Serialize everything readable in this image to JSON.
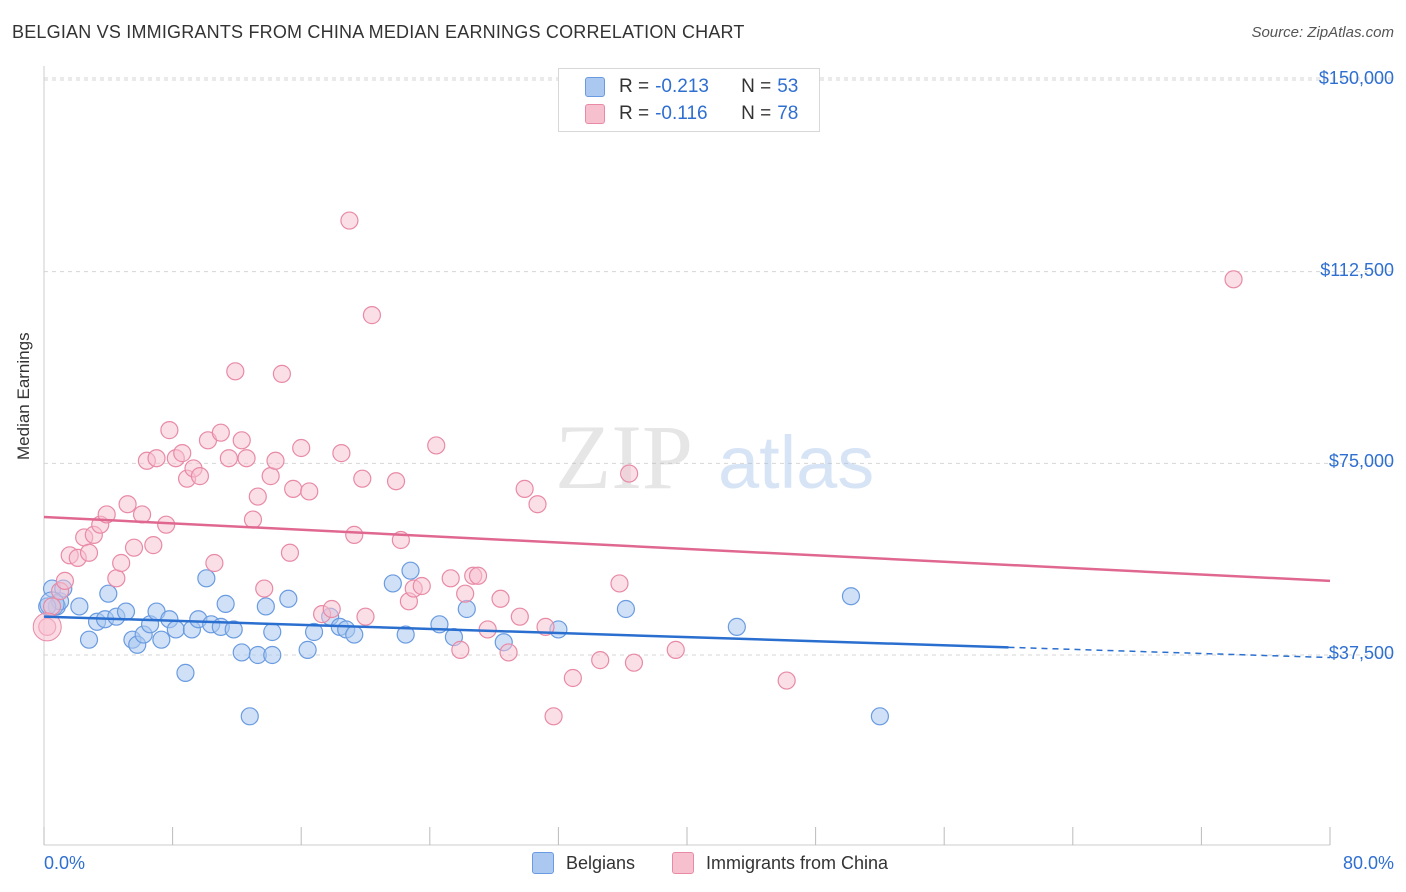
{
  "header": {
    "title": "BELGIAN VS IMMIGRANTS FROM CHINA MEDIAN EARNINGS CORRELATION CHART",
    "source": "Source: ZipAtlas.com"
  },
  "legend": {
    "belgians": {
      "r_label": "R = ",
      "r_value": "-0.213",
      "n_label": "N = ",
      "n_value": "53"
    },
    "china": {
      "r_label": "R = ",
      "r_value": "-0.116",
      "n_label": "N = ",
      "n_value": "78"
    }
  },
  "bottom_legend": {
    "belgians": "Belgians",
    "china": "Immigrants from China"
  },
  "watermark": {
    "zip": "ZIP",
    "atlas": "atlas"
  },
  "colors": {
    "belgians_fill": "#aac8f0",
    "belgians_stroke": "#6a9be0",
    "belgians_line": "#2a6fcf",
    "china_fill": "#f7c0cf",
    "china_stroke": "#e88aa6",
    "china_line": "#e06890",
    "axis_text": "#2f6fd1",
    "grid": "#d6d6d6"
  },
  "chart_data": {
    "type": "scatter",
    "title": "BELGIAN VS IMMIGRANTS FROM CHINA MEDIAN EARNINGS CORRELATION CHART",
    "xlabel": "",
    "ylabel": "Median Earnings",
    "xlim": [
      0,
      80
    ],
    "ylim": [
      0,
      155000
    ],
    "x_tick_labels": [
      "0.0%",
      "80.0%"
    ],
    "y_ticks": [
      37500,
      75000,
      112500,
      150000
    ],
    "y_tick_labels": [
      "$37,500",
      "$75,000",
      "$112,500",
      "$150,000"
    ],
    "grid": true,
    "legend_position": "top-center",
    "series": [
      {
        "name": "Belgians",
        "r": -0.213,
        "n": 53,
        "trend": {
          "x0": 0,
          "y0": 45000,
          "x1": 60,
          "y1": 39000,
          "dashed_to_x": 80,
          "dashed_to_y": 37000
        },
        "points": [
          [
            0.5,
            50500
          ],
          [
            0.8,
            47000
          ],
          [
            1.0,
            48000
          ],
          [
            1.2,
            50500
          ],
          [
            2.2,
            47000
          ],
          [
            2.8,
            40500
          ],
          [
            3.3,
            44000
          ],
          [
            3.8,
            44500
          ],
          [
            4.0,
            49500
          ],
          [
            4.5,
            45000
          ],
          [
            5.1,
            46000
          ],
          [
            5.5,
            40500
          ],
          [
            5.8,
            39500
          ],
          [
            6.2,
            41500
          ],
          [
            6.6,
            43500
          ],
          [
            7.0,
            46000
          ],
          [
            7.3,
            40500
          ],
          [
            7.8,
            44500
          ],
          [
            8.2,
            42500
          ],
          [
            8.8,
            34000
          ],
          [
            9.2,
            42500
          ],
          [
            9.6,
            44500
          ],
          [
            10.1,
            52500
          ],
          [
            10.4,
            43500
          ],
          [
            11.0,
            43000
          ],
          [
            11.3,
            47500
          ],
          [
            11.8,
            42500
          ],
          [
            12.3,
            38000
          ],
          [
            12.8,
            25500
          ],
          [
            13.3,
            37500
          ],
          [
            13.8,
            47000
          ],
          [
            14.2,
            37500
          ],
          [
            14.2,
            42000
          ],
          [
            15.2,
            48500
          ],
          [
            16.4,
            38500
          ],
          [
            16.8,
            42000
          ],
          [
            17.8,
            45000
          ],
          [
            18.4,
            43000
          ],
          [
            18.8,
            42500
          ],
          [
            19.3,
            41500
          ],
          [
            21.7,
            51500
          ],
          [
            22.5,
            41500
          ],
          [
            22.8,
            54000
          ],
          [
            24.6,
            43500
          ],
          [
            25.5,
            41000
          ],
          [
            26.3,
            46500
          ],
          [
            28.6,
            40000
          ],
          [
            32.0,
            42500
          ],
          [
            36.2,
            46500
          ],
          [
            43.1,
            43000
          ],
          [
            50.2,
            49000
          ],
          [
            52.0,
            25500
          ],
          [
            0.2,
            47000
          ]
        ]
      },
      {
        "name": "Immigrants from China",
        "r": -0.116,
        "n": 78,
        "trend": {
          "x0": 0,
          "y0": 64500,
          "x1": 80,
          "y1": 52000
        },
        "points": [
          [
            0.2,
            43000
          ],
          [
            0.5,
            47000
          ],
          [
            1.0,
            50000
          ],
          [
            1.3,
            52000
          ],
          [
            1.6,
            57000
          ],
          [
            2.1,
            56500
          ],
          [
            2.5,
            60500
          ],
          [
            2.8,
            57500
          ],
          [
            3.1,
            61000
          ],
          [
            3.5,
            63000
          ],
          [
            3.9,
            65000
          ],
          [
            4.5,
            52500
          ],
          [
            4.8,
            55500
          ],
          [
            5.2,
            67000
          ],
          [
            5.6,
            58500
          ],
          [
            6.1,
            65000
          ],
          [
            6.4,
            75500
          ],
          [
            6.8,
            59000
          ],
          [
            7.0,
            76000
          ],
          [
            7.6,
            63000
          ],
          [
            7.8,
            81500
          ],
          [
            8.2,
            76000
          ],
          [
            8.6,
            77000
          ],
          [
            8.9,
            72000
          ],
          [
            9.3,
            74000
          ],
          [
            9.7,
            72500
          ],
          [
            10.2,
            79500
          ],
          [
            10.6,
            55500
          ],
          [
            11.0,
            81000
          ],
          [
            11.5,
            76000
          ],
          [
            11.9,
            93000
          ],
          [
            12.3,
            79500
          ],
          [
            12.6,
            76000
          ],
          [
            13.0,
            64000
          ],
          [
            13.3,
            68500
          ],
          [
            13.7,
            50500
          ],
          [
            14.1,
            72500
          ],
          [
            14.4,
            75500
          ],
          [
            14.8,
            92500
          ],
          [
            15.3,
            57500
          ],
          [
            15.5,
            70000
          ],
          [
            16.0,
            78000
          ],
          [
            16.5,
            69500
          ],
          [
            17.3,
            45500
          ],
          [
            17.9,
            46500
          ],
          [
            18.5,
            77000
          ],
          [
            19.0,
            122500
          ],
          [
            19.3,
            61000
          ],
          [
            19.8,
            72000
          ],
          [
            20.0,
            45000
          ],
          [
            20.4,
            104000
          ],
          [
            21.9,
            71500
          ],
          [
            22.2,
            60000
          ],
          [
            22.7,
            48000
          ],
          [
            23.0,
            50500
          ],
          [
            23.5,
            51000
          ],
          [
            24.4,
            78500
          ],
          [
            25.3,
            52500
          ],
          [
            25.9,
            38500
          ],
          [
            26.2,
            49500
          ],
          [
            26.7,
            53000
          ],
          [
            27.0,
            53000
          ],
          [
            27.6,
            42500
          ],
          [
            28.4,
            48500
          ],
          [
            28.9,
            38000
          ],
          [
            29.6,
            45000
          ],
          [
            29.9,
            70000
          ],
          [
            30.7,
            67000
          ],
          [
            31.2,
            43000
          ],
          [
            31.7,
            25500
          ],
          [
            32.9,
            33000
          ],
          [
            34.6,
            36500
          ],
          [
            35.8,
            51500
          ],
          [
            36.4,
            73000
          ],
          [
            36.7,
            36000
          ],
          [
            39.3,
            38500
          ],
          [
            46.2,
            32500
          ],
          [
            74.0,
            111000
          ]
        ]
      }
    ]
  }
}
